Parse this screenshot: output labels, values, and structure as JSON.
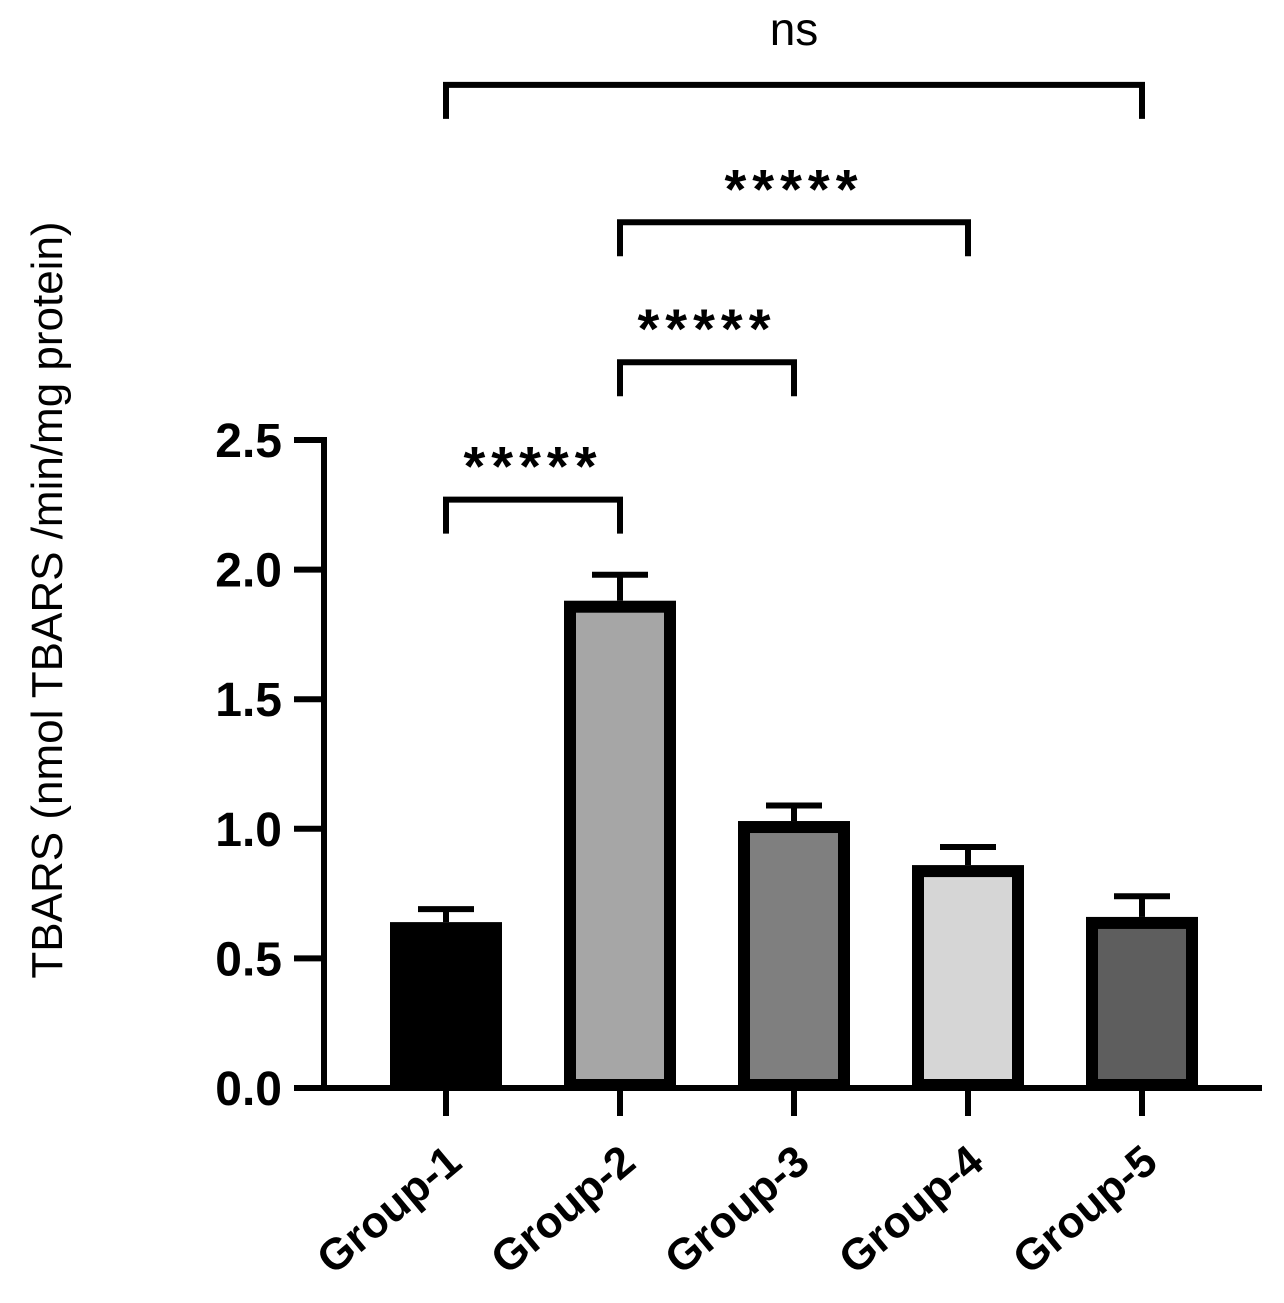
{
  "chart_data": {
    "type": "bar",
    "title": "",
    "xlabel": "",
    "ylabel": "TBARS (nmol TBARS /min/mg protein)",
    "ylim": [
      0,
      2.5
    ],
    "yticks": [
      "0.0",
      "0.5",
      "1.0",
      "1.5",
      "2.0",
      "2.5"
    ],
    "categories": [
      "Group-1",
      "Group-2",
      "Group-3",
      "Group-4",
      "Group-5"
    ],
    "values": [
      0.64,
      1.88,
      1.03,
      0.86,
      0.66
    ],
    "errors": [
      0.05,
      0.1,
      0.06,
      0.07,
      0.08
    ],
    "bar_colors": [
      "#000000",
      "#a6a6a6",
      "#7f7f7f",
      "#d6d6d6",
      "#5e5e5e"
    ],
    "significance": [
      {
        "from": 0,
        "to": 1,
        "label": "*****",
        "level": 2.27
      },
      {
        "from": 1,
        "to": 2,
        "label": "*****",
        "level": 2.8
      },
      {
        "from": 1,
        "to": 3,
        "label": "*****",
        "level": 3.34
      },
      {
        "from": 0,
        "to": 4,
        "label": "ns",
        "level": 3.87
      }
    ],
    "grid": false,
    "legend": "none"
  }
}
